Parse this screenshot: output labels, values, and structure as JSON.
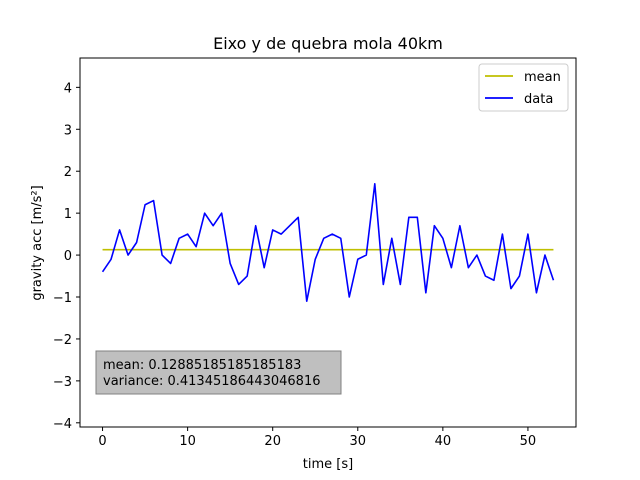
{
  "chart_data": {
    "type": "line",
    "title": "Eixo y de quebra mola 40km",
    "xlabel": "time [s]",
    "ylabel": "gravity acc [m/s²]",
    "xlim": [
      -2.65,
      55.65
    ],
    "ylim": [
      -4.1,
      4.7
    ],
    "xticks": [
      0,
      10,
      20,
      30,
      40,
      50
    ],
    "yticks": [
      -4,
      -3,
      -2,
      -1,
      0,
      1,
      2,
      3,
      4
    ],
    "xtick_labels": [
      "0",
      "10",
      "20",
      "30",
      "40",
      "50"
    ],
    "ytick_labels": [
      "−4",
      "−3",
      "−2",
      "−1",
      "0",
      "1",
      "2",
      "3",
      "4"
    ],
    "grid": false,
    "legend_position": "top-right",
    "series": [
      {
        "name": "mean",
        "color": "#bfbf00",
        "x": [
          0,
          53
        ],
        "y": [
          0.12885185185185183,
          0.12885185185185183
        ]
      },
      {
        "name": "data",
        "color": "#0000ff",
        "x": [
          0,
          1,
          2,
          3,
          4,
          5,
          6,
          7,
          8,
          9,
          10,
          11,
          12,
          13,
          14,
          15,
          16,
          17,
          18,
          19,
          20,
          21,
          22,
          23,
          24,
          25,
          26,
          27,
          28,
          29,
          30,
          31,
          32,
          33,
          34,
          35,
          36,
          37,
          38,
          39,
          40,
          41,
          42,
          43,
          44,
          45,
          46,
          47,
          48,
          49,
          50,
          51,
          52,
          53
        ],
        "y": [
          -0.4,
          -0.1,
          0.6,
          0.0,
          0.3,
          1.2,
          1.3,
          0.0,
          -0.2,
          0.4,
          0.5,
          0.2,
          1.0,
          0.7,
          1.0,
          -0.2,
          -0.7,
          -0.5,
          0.7,
          -0.3,
          0.6,
          0.5,
          0.7,
          0.9,
          -1.1,
          -0.1,
          0.4,
          0.5,
          0.4,
          -1.0,
          -0.1,
          0.0,
          1.7,
          -0.7,
          0.4,
          -0.7,
          0.9,
          0.9,
          -0.9,
          0.7,
          0.4,
          -0.3,
          0.7,
          -0.3,
          0.0,
          -0.5,
          -0.6,
          0.5,
          -0.8,
          -0.5,
          0.5,
          -0.9,
          0.0,
          -0.6
        ]
      }
    ],
    "annotations": {
      "mean_text": "mean: 0.12885185185185183",
      "variance_text": "variance: 0.41345186443046816"
    }
  }
}
